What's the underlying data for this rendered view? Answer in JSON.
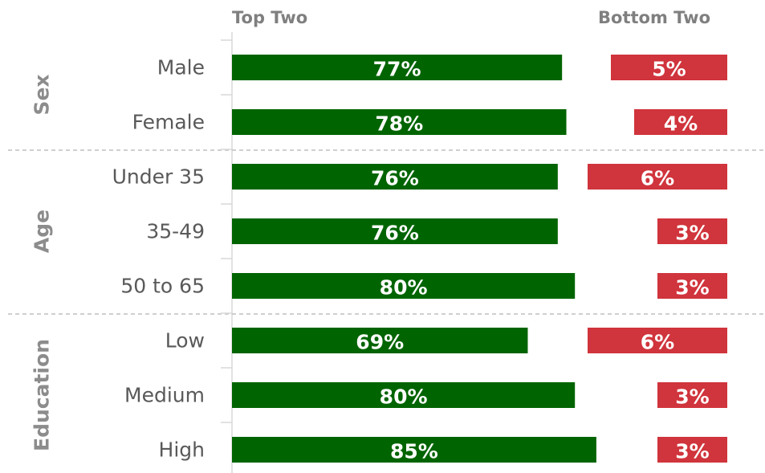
{
  "chart_data": {
    "type": "bar",
    "groups": [
      {
        "name": "Sex",
        "categories": [
          "Male",
          "Female"
        ]
      },
      {
        "name": "Age",
        "categories": [
          "Under 35",
          "35-49",
          "50 to 65"
        ]
      },
      {
        "name": "Education",
        "categories": [
          "Low",
          "Medium",
          "High"
        ]
      }
    ],
    "series": [
      {
        "name": "Top Two",
        "color": "#006400",
        "values": [
          77,
          78,
          76,
          76,
          80,
          69,
          80,
          85
        ],
        "value_labels": [
          "77%",
          "78%",
          "76%",
          "76%",
          "80%",
          "69%",
          "80%",
          "85%"
        ]
      },
      {
        "name": "Bottom Two",
        "color": "#d0343c",
        "values": [
          5,
          4,
          6,
          3,
          3,
          6,
          3,
          3
        ],
        "value_labels": [
          "5%",
          "4%",
          "6%",
          "3%",
          "3%",
          "6%",
          "3%",
          "3%"
        ]
      }
    ]
  }
}
